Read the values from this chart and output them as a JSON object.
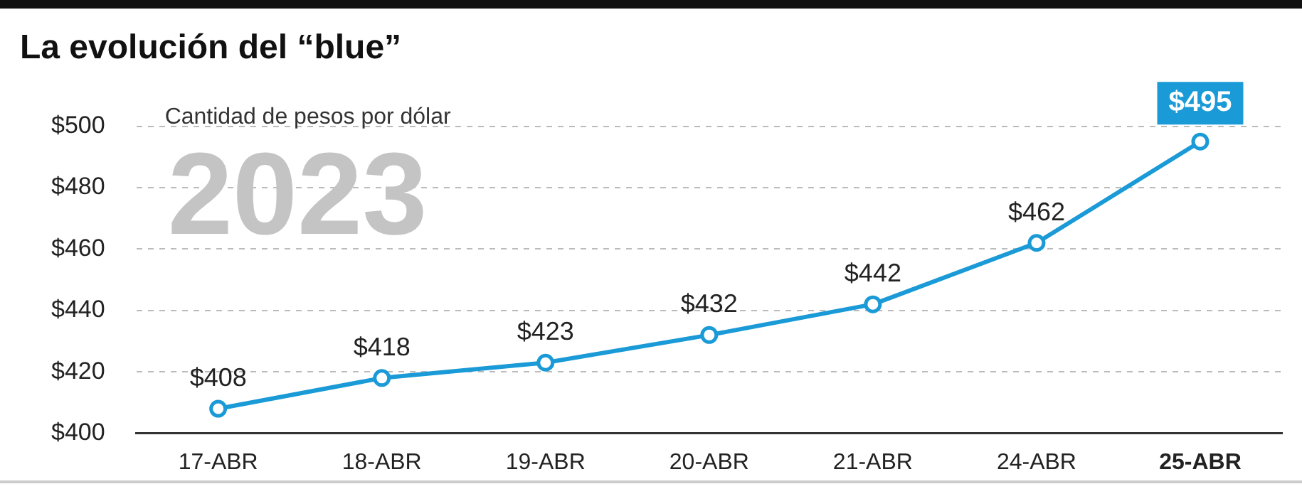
{
  "chart_data": {
    "type": "line",
    "title": "La evolución del “blue”",
    "annotations": [
      "Cantidad de pesos por dólar",
      "2023"
    ],
    "categories": [
      "17-ABR",
      "18-ABR",
      "19-ABR",
      "20-ABR",
      "21-ABR",
      "24-ABR",
      "25-ABR"
    ],
    "series": [
      {
        "color": "#1a9ad6",
        "values": [
          408,
          418,
          423,
          432,
          442,
          462,
          495
        ],
        "value_labels": [
          "$408",
          "$418",
          "$423",
          "$432",
          "$442",
          "$462",
          "$495"
        ]
      }
    ],
    "ylim": [
      400,
      500
    ],
    "yticks": [
      {
        "value": 400,
        "label": "$400"
      },
      {
        "value": 420,
        "label": "$420"
      },
      {
        "value": 440,
        "label": "$440"
      },
      {
        "value": 460,
        "label": "$460"
      },
      {
        "value": 480,
        "label": "$480"
      },
      {
        "value": 500,
        "label": "$500"
      }
    ],
    "grid": "y",
    "legend": false,
    "marker": "circle",
    "line_style": "solid"
  }
}
